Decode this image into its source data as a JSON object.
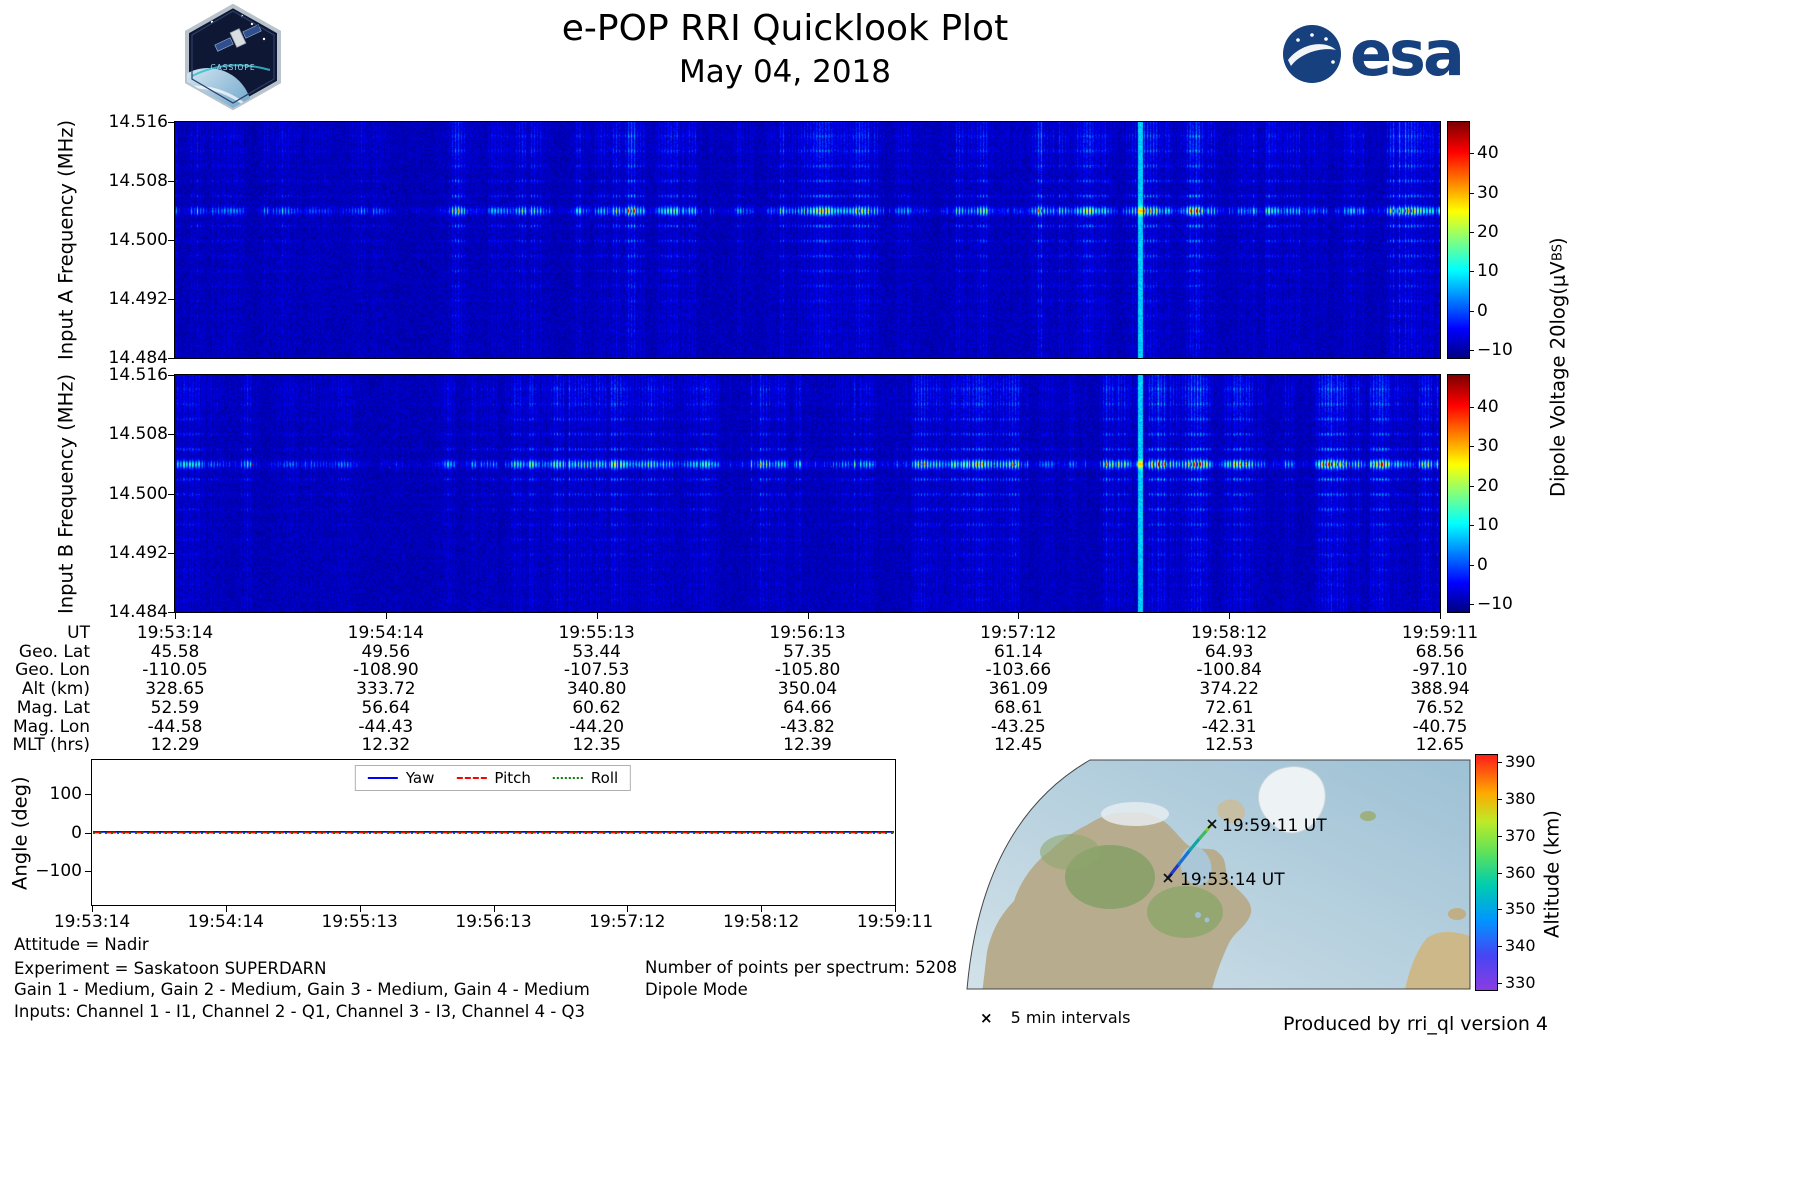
{
  "header": {
    "title": "e-POP RRI Quicklook Plot",
    "subtitle": "May 04, 2018",
    "esa_wordmark": "esa",
    "patch_label": "CASSIOPE"
  },
  "spectrogram_shared": {
    "colorbar_label_pre": "Dipole Voltage 20log(μV",
    "colorbar_label_sub": "BS",
    "colorbar_label_post": ")"
  },
  "footer": {
    "attitude": "Attitude = Nadir",
    "experiment": "Experiment = Saskatoon SUPERDARN",
    "gains": "Gain 1 - Medium, Gain 2 - Medium, Gain 3 - Medium, Gain 4 - Medium",
    "inputs": "Inputs: Channel 1 - I1, Channel 2 - Q1, Channel 3 - I3, Channel 4 - Q3",
    "points_per_spectrum": "Number of points per spectrum: 5208",
    "mode": "Dipole Mode"
  },
  "map_area": {
    "end_label": "19:59:11 UT",
    "start_label": "19:53:14 UT",
    "marker_glyph": "×",
    "marker_legend": "5 min intervals",
    "produced_by": "Produced by rri_ql version 4",
    "colorbar_label": "Altitude (km)"
  },
  "chart_data": [
    {
      "id": "spectrogram_a",
      "type": "heatmap",
      "title": "Input A dynamic spectrum",
      "ylabel": "Input A Frequency (MHz)",
      "ylim": [
        14.484,
        14.516
      ],
      "yticks": [
        "14.516",
        "14.508",
        "14.500",
        "14.492",
        "14.484"
      ],
      "xticks_ut": [
        "19:53:14",
        "19:54:14",
        "19:55:13",
        "19:56:13",
        "19:57:12",
        "19:58:12",
        "19:59:11"
      ],
      "signal_center_mhz": 14.504,
      "colorbar": {
        "ticks": [
          "40",
          "30",
          "20",
          "10",
          "0",
          "−10"
        ],
        "vmin": -12,
        "vmax": 48,
        "colormap": "jet"
      }
    },
    {
      "id": "spectrogram_b",
      "type": "heatmap",
      "title": "Input B dynamic spectrum",
      "ylabel": "Input B Frequency (MHz)",
      "ylim": [
        14.484,
        14.516
      ],
      "yticks": [
        "14.516",
        "14.508",
        "14.500",
        "14.492",
        "14.484"
      ],
      "xticks_ut": [
        "19:53:14",
        "19:54:14",
        "19:55:13",
        "19:56:13",
        "19:57:12",
        "19:58:12",
        "19:59:11"
      ],
      "signal_center_mhz": 14.504,
      "colorbar": {
        "ticks": [
          "40",
          "30",
          "20",
          "10",
          "0",
          "−10"
        ],
        "vmin": -12,
        "vmax": 48,
        "colormap": "jet"
      }
    },
    {
      "id": "ephemeris",
      "type": "table",
      "rows": [
        {
          "label": "UT",
          "values": [
            "19:53:14",
            "19:54:14",
            "19:55:13",
            "19:56:13",
            "19:57:12",
            "19:58:12",
            "19:59:11"
          ]
        },
        {
          "label": "Geo. Lat",
          "values": [
            "45.58",
            "49.56",
            "53.44",
            "57.35",
            "61.14",
            "64.93",
            "68.56"
          ]
        },
        {
          "label": "Geo. Lon",
          "values": [
            "-110.05",
            "-108.90",
            "-107.53",
            "-105.80",
            "-103.66",
            "-100.84",
            "-97.10"
          ]
        },
        {
          "label": "Alt (km)",
          "values": [
            "328.65",
            "333.72",
            "340.80",
            "350.04",
            "361.09",
            "374.22",
            "388.94"
          ]
        },
        {
          "label": "Mag. Lat",
          "values": [
            "52.59",
            "56.64",
            "60.62",
            "64.66",
            "68.61",
            "72.61",
            "76.52"
          ]
        },
        {
          "label": "Mag. Lon",
          "values": [
            "-44.58",
            "-44.43",
            "-44.20",
            "-43.82",
            "-43.25",
            "-42.31",
            "-40.75"
          ]
        },
        {
          "label": "MLT (hrs)",
          "values": [
            "12.29",
            "12.32",
            "12.35",
            "12.39",
            "12.45",
            "12.53",
            "12.65"
          ]
        }
      ]
    },
    {
      "id": "attitude_angles",
      "type": "line",
      "ylabel": "Angle (deg)",
      "ylim": [
        -190,
        190
      ],
      "yticks": [
        {
          "label": "100",
          "value": 100
        },
        {
          "label": "0",
          "value": 0
        },
        {
          "label": "−100",
          "value": -100
        }
      ],
      "xticks": [
        "19:53:14",
        "19:54:14",
        "19:55:13",
        "19:56:13",
        "19:57:12",
        "19:58:12",
        "19:59:11"
      ],
      "series": [
        {
          "name": "Yaw",
          "color": "#0000ff",
          "style": "solid",
          "value_deg": 0
        },
        {
          "name": "Pitch",
          "color": "#ff0000",
          "style": "dashed",
          "value_deg": 0
        },
        {
          "name": "Roll",
          "color": "#007f00",
          "style": "dotted",
          "value_deg": 0
        }
      ]
    },
    {
      "id": "ground_track_map",
      "type": "map",
      "colorbar": {
        "label": "Altitude (km)",
        "ticks": [
          "390",
          "380",
          "370",
          "360",
          "350",
          "340",
          "330"
        ],
        "vmin": 328,
        "vmax": 392,
        "colormap": "rainbow"
      },
      "track": {
        "start": {
          "ut": "19:53:14",
          "geo_lat": "45.58",
          "geo_lon": "-110.05",
          "alt_km": "328.65"
        },
        "end": {
          "ut": "19:59:11",
          "geo_lat": "68.56",
          "geo_lon": "-97.10",
          "alt_km": "388.94"
        }
      }
    }
  ]
}
